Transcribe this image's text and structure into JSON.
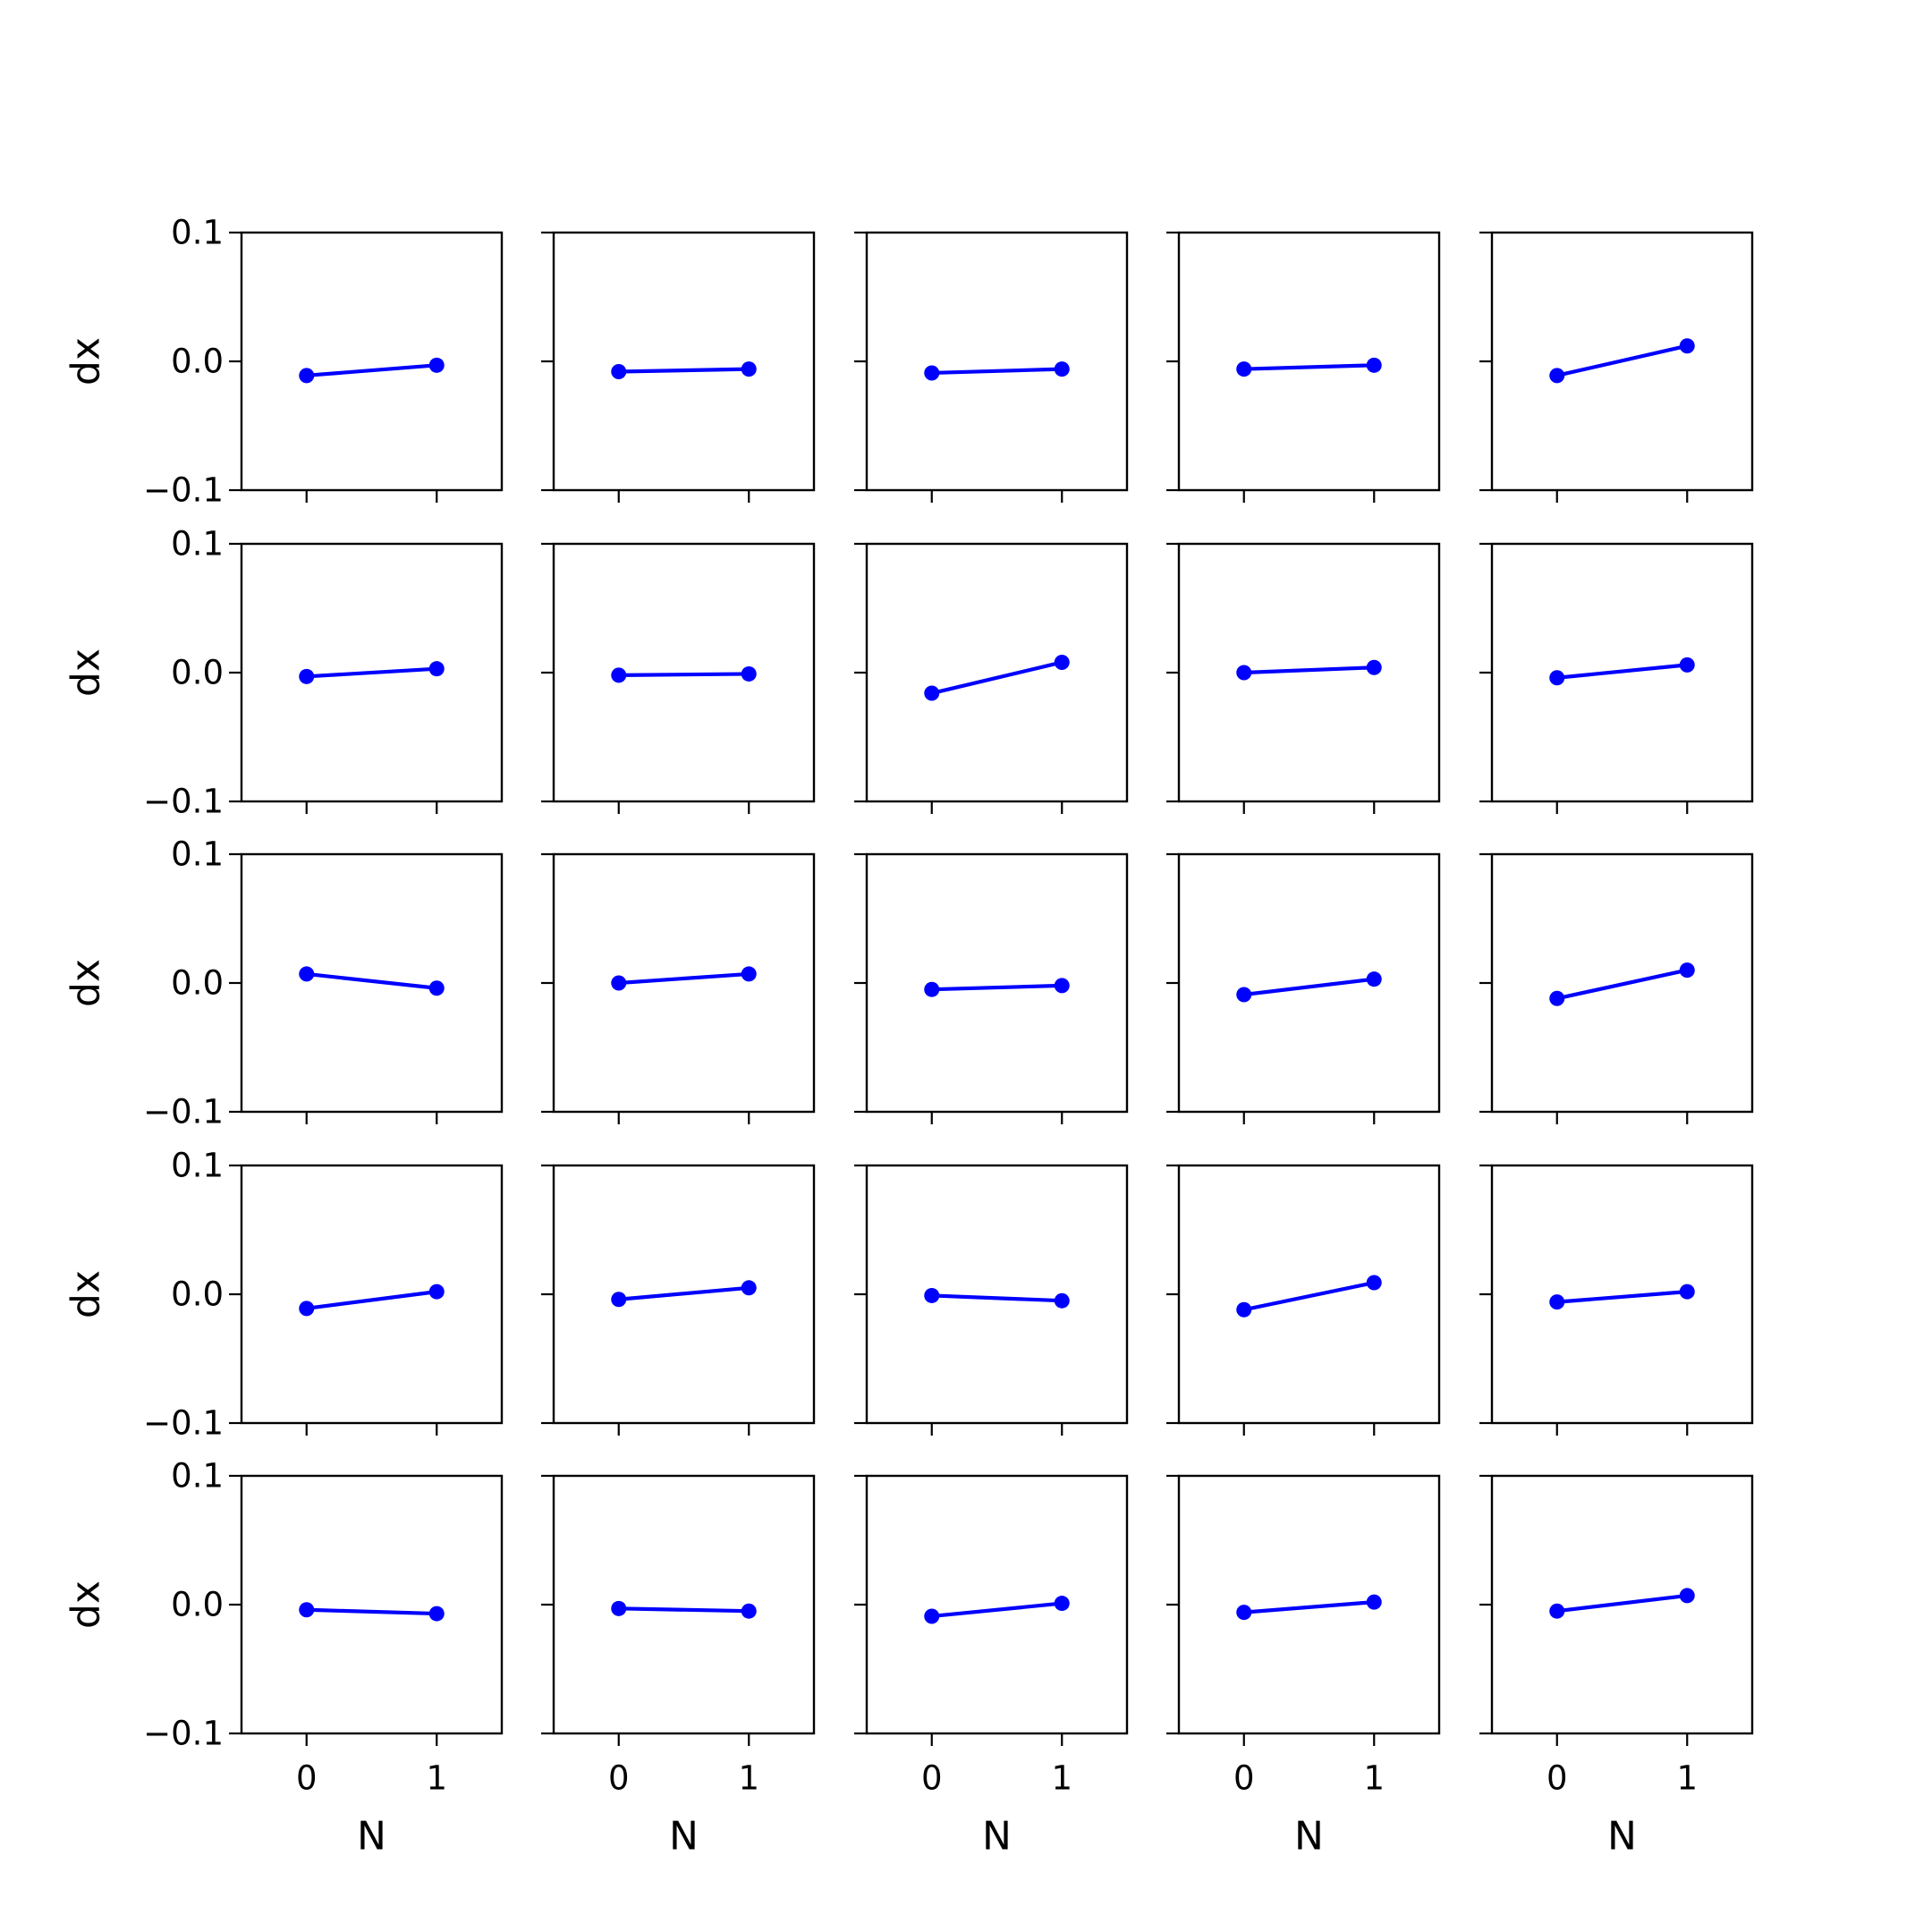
{
  "chart_data": {
    "type": "line",
    "layout": "5x5 grid of subplots",
    "xlabel": "N",
    "ylabel": "dx",
    "xlim": [
      -0.5,
      1.5
    ],
    "ylim": [
      -0.1,
      0.1
    ],
    "x_ticks": [
      "0",
      "1"
    ],
    "y_ticks": [
      "−0.1",
      "0.0",
      "0.1"
    ],
    "grid": false,
    "marker": "o",
    "color": "#0000ff",
    "x": [
      0,
      1
    ],
    "subplots": [
      {
        "row": 1,
        "col": 1,
        "y": [
          -0.011,
          -0.003
        ]
      },
      {
        "row": 1,
        "col": 2,
        "y": [
          -0.008,
          -0.006
        ]
      },
      {
        "row": 1,
        "col": 3,
        "y": [
          -0.009,
          -0.006
        ]
      },
      {
        "row": 1,
        "col": 4,
        "y": [
          -0.006,
          -0.003
        ]
      },
      {
        "row": 1,
        "col": 5,
        "y": [
          -0.011,
          0.012
        ]
      },
      {
        "row": 2,
        "col": 1,
        "y": [
          -0.003,
          0.003
        ]
      },
      {
        "row": 2,
        "col": 2,
        "y": [
          -0.002,
          -0.001
        ]
      },
      {
        "row": 2,
        "col": 3,
        "y": [
          -0.016,
          0.008
        ]
      },
      {
        "row": 2,
        "col": 4,
        "y": [
          0.0,
          0.004
        ]
      },
      {
        "row": 2,
        "col": 5,
        "y": [
          -0.004,
          0.006
        ]
      },
      {
        "row": 3,
        "col": 1,
        "y": [
          0.007,
          -0.004
        ]
      },
      {
        "row": 3,
        "col": 2,
        "y": [
          0.0,
          0.007
        ]
      },
      {
        "row": 3,
        "col": 3,
        "y": [
          -0.005,
          -0.002
        ]
      },
      {
        "row": 3,
        "col": 4,
        "y": [
          -0.009,
          0.003
        ]
      },
      {
        "row": 3,
        "col": 5,
        "y": [
          -0.012,
          0.01
        ]
      },
      {
        "row": 4,
        "col": 1,
        "y": [
          -0.011,
          0.002
        ]
      },
      {
        "row": 4,
        "col": 2,
        "y": [
          -0.004,
          0.005
        ]
      },
      {
        "row": 4,
        "col": 3,
        "y": [
          -0.001,
          -0.005
        ]
      },
      {
        "row": 4,
        "col": 4,
        "y": [
          -0.012,
          0.009
        ]
      },
      {
        "row": 4,
        "col": 5,
        "y": [
          -0.006,
          0.002
        ]
      },
      {
        "row": 5,
        "col": 1,
        "y": [
          -0.004,
          -0.007
        ]
      },
      {
        "row": 5,
        "col": 2,
        "y": [
          -0.003,
          -0.005
        ]
      },
      {
        "row": 5,
        "col": 3,
        "y": [
          -0.009,
          0.001
        ]
      },
      {
        "row": 5,
        "col": 4,
        "y": [
          -0.006,
          0.002
        ]
      },
      {
        "row": 5,
        "col": 5,
        "y": [
          -0.005,
          0.007
        ]
      }
    ]
  }
}
